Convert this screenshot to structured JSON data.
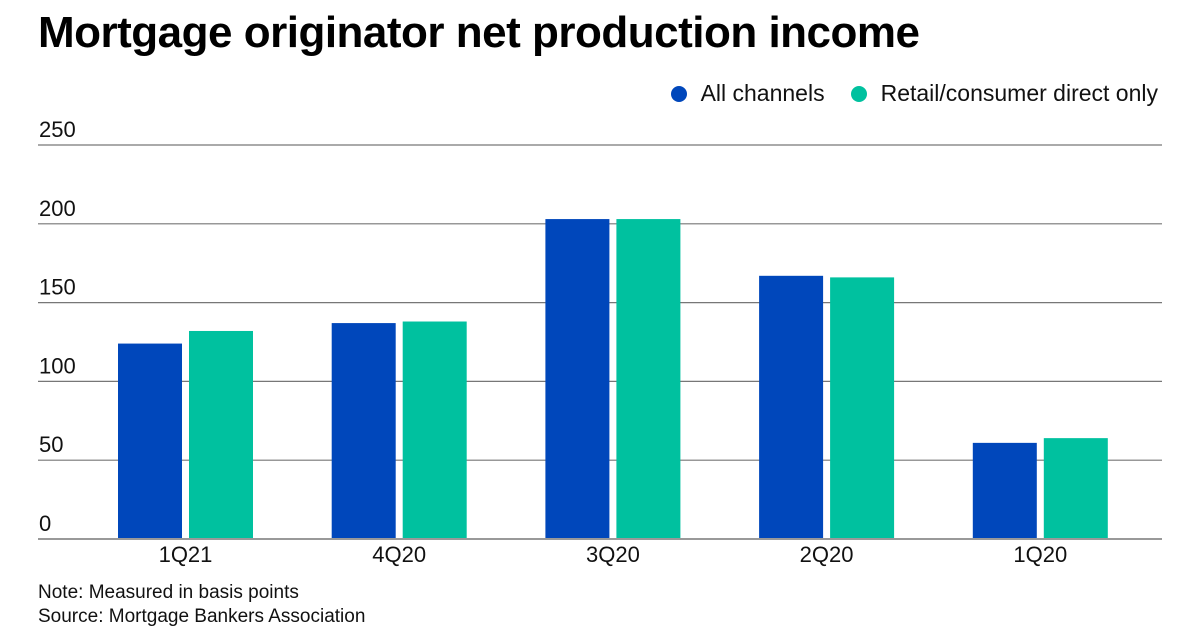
{
  "chart_data": {
    "type": "bar",
    "title": "Mortgage originator net production income",
    "xlabel": "",
    "ylabel": "",
    "categories": [
      "1Q21",
      "4Q20",
      "3Q20",
      "2Q20",
      "1Q20"
    ],
    "series": [
      {
        "name": "All channels",
        "color": "#0047bb",
        "values": [
          124,
          137,
          203,
          167,
          61
        ]
      },
      {
        "name": "Retail/consumer direct only",
        "color": "#00c19f",
        "values": [
          132,
          138,
          203,
          166,
          64
        ]
      }
    ],
    "ylim": [
      0,
      250
    ],
    "yticks": [
      "0",
      "50",
      "100",
      "150",
      "200",
      "250"
    ],
    "ytick_values": [
      0,
      50,
      100,
      150,
      200,
      250
    ],
    "grid": true,
    "legend_position": "top-right",
    "notes": [
      "Note: Measured in basis points",
      "Source: Mortgage Bankers Association"
    ]
  }
}
